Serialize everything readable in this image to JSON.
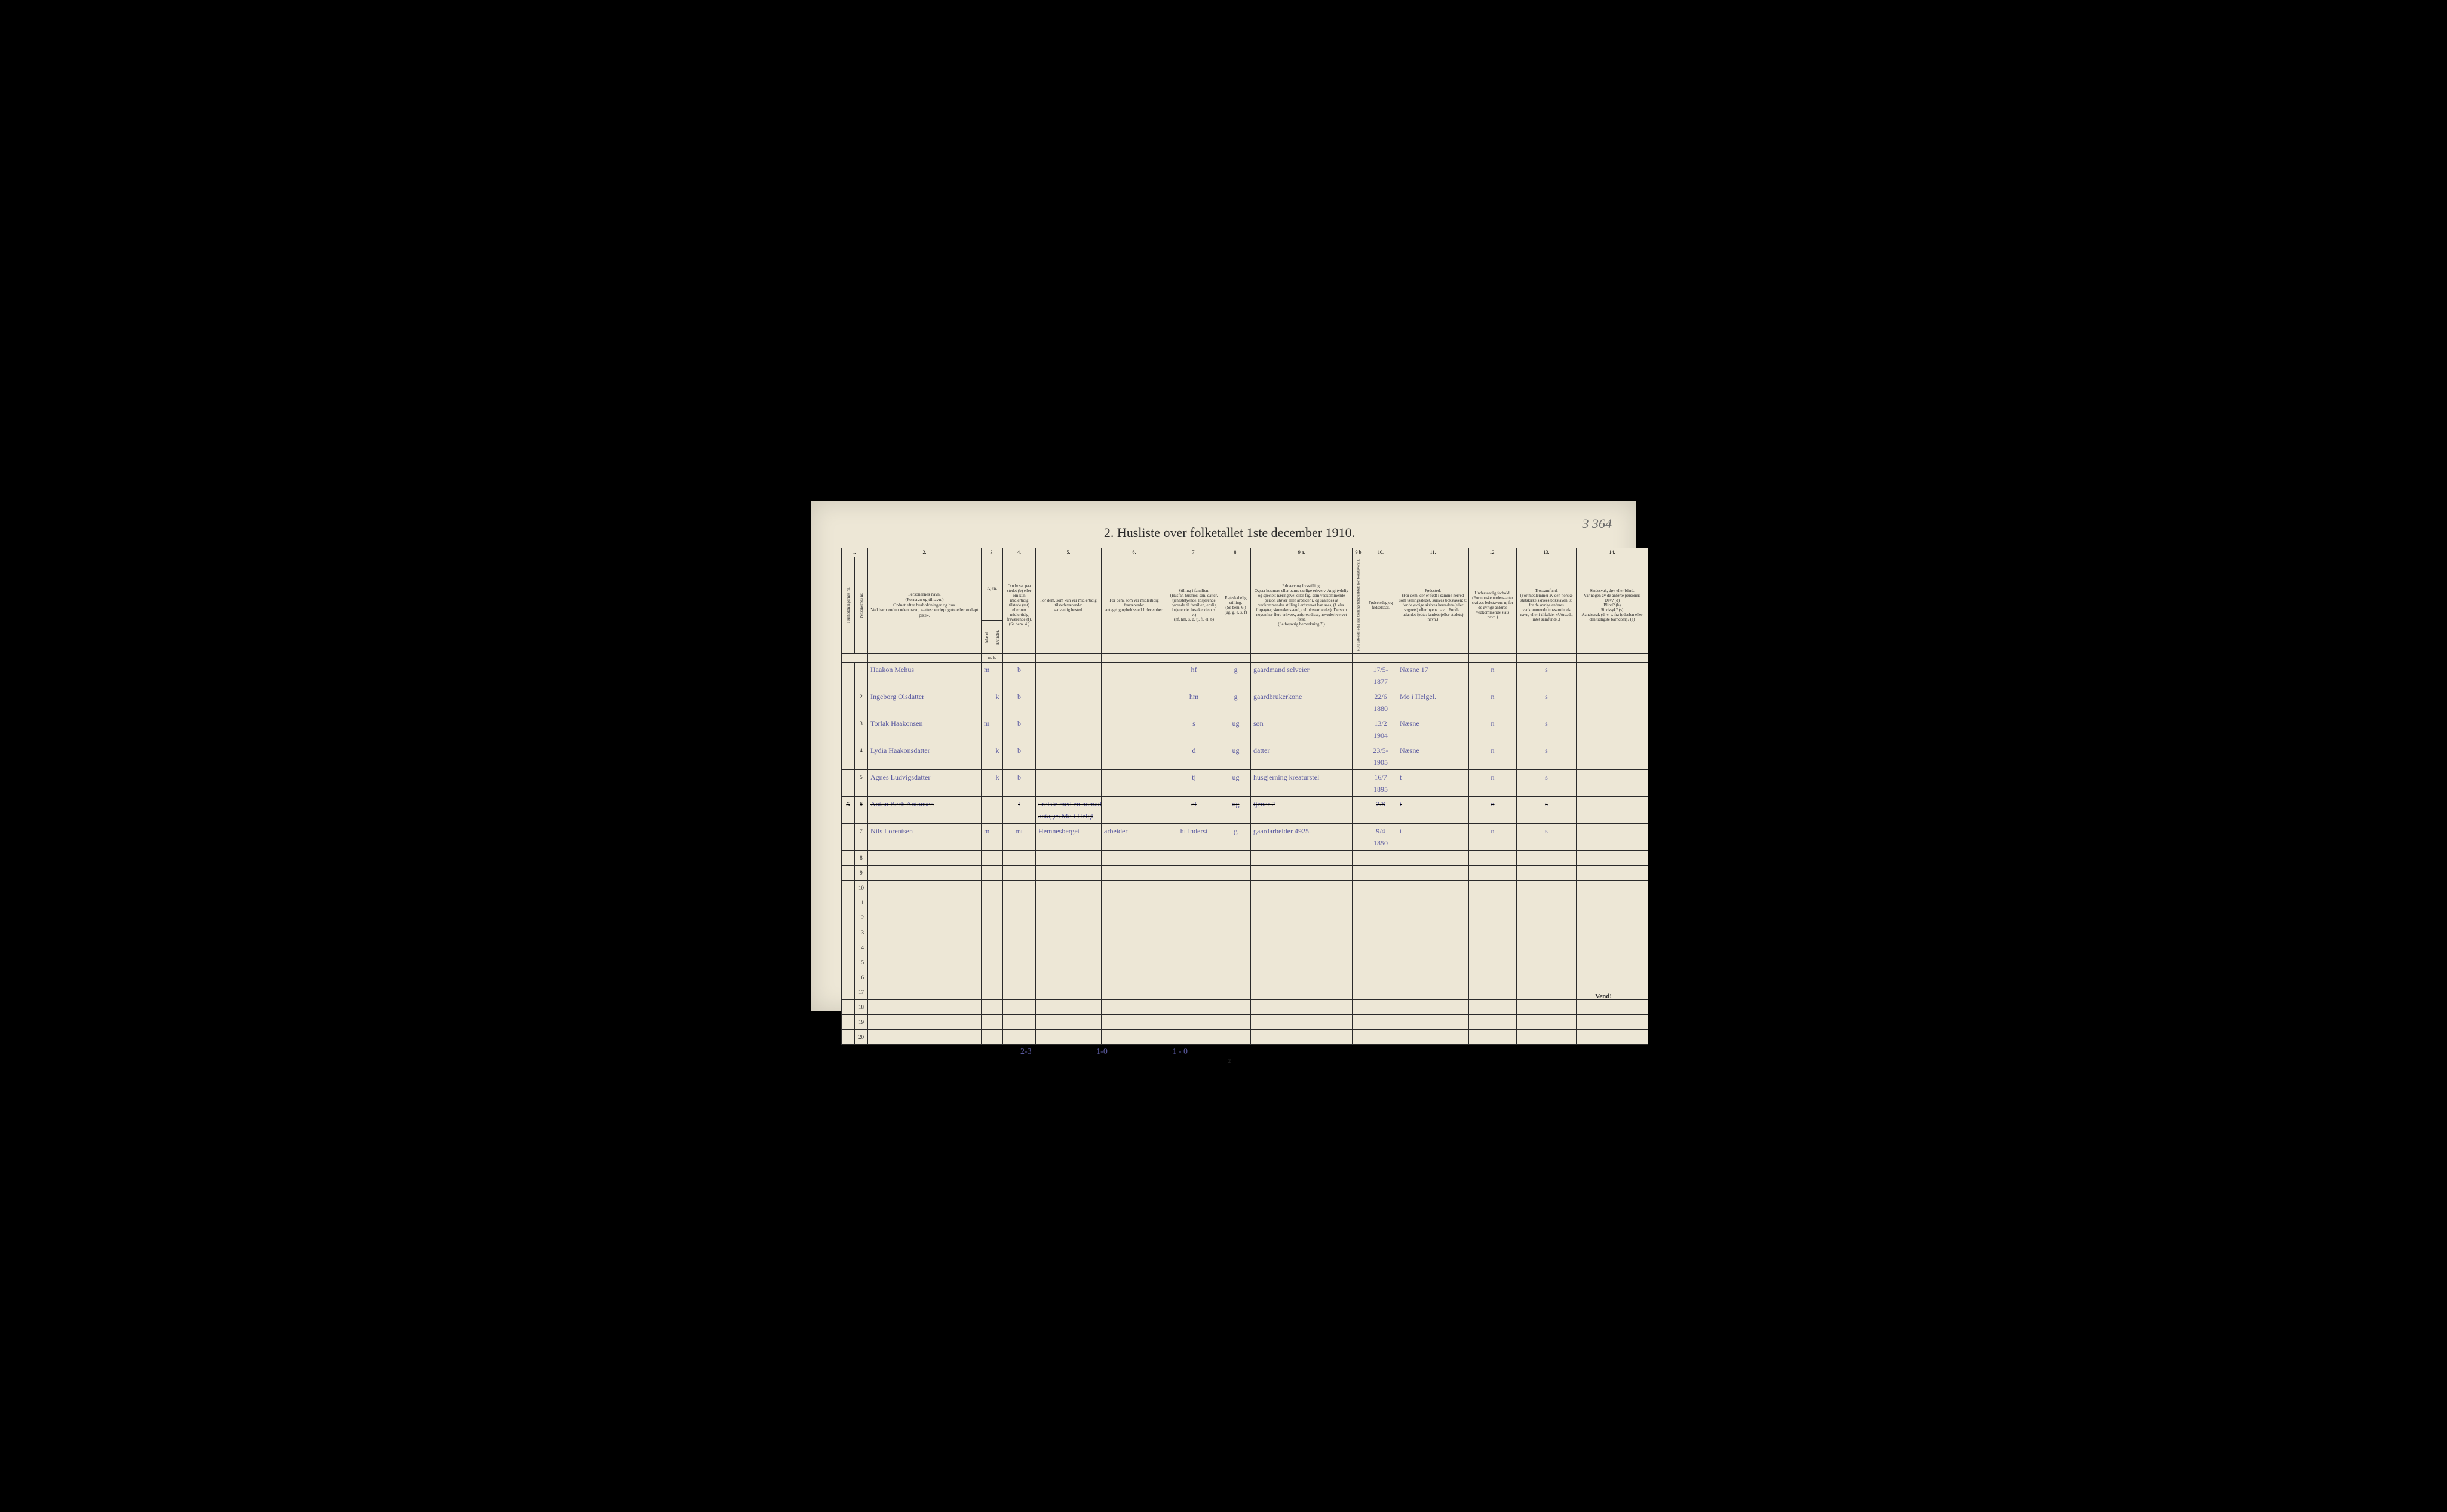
{
  "cornerNote": "3 364",
  "title": "2.  Husliste over folketallet 1ste december 1910.",
  "colNumbers": [
    "1.",
    "2.",
    "3.",
    "4.",
    "5.",
    "6.",
    "7.",
    "8.",
    "9 a.",
    "9 b",
    "10.",
    "11.",
    "12.",
    "13.",
    "14."
  ],
  "headers": {
    "c1a": "Husholdningernes nr.",
    "c1b": "Personernes nr.",
    "c2": "Personernes navn.\n(Fornavn og tilnavn.)\nOrdnet efter husholdninger og hus.\nVed barn endnu uden navn, sættes: «udøpt gut» eller «udøpt pike».",
    "c3": "Kjøn.",
    "c3m": "Mænd.",
    "c3k": "Kvinder.",
    "c4": "Om bosat paa stedet (b) eller om kun midlertidig tilstede (mt) eller om midlertidig fraværende (f).\n(Se bem. 4.)",
    "c5": "For dem, som kun var midlertidig tilstedeværende:\nsedvanlig bosted.",
    "c6": "For dem, som var midlertidig fraværende:\nantagelig opholdssted 1 december.",
    "c7": "Stilling i familien.\n(Husfar, husmor, søn, datter, tjenestetyende, losjerende hørende til familien, enslig losjerende, besøkende o. s. v.)\n(hf, hm, s, d, tj, fl, el, b)",
    "c8": "Egteskabelig stilling.\n(Se bem. 6.)\n(ug, g, e, s, f)",
    "c9a": "Erhverv og livsstilling.\nOgsaa husmors eller barns særlige erhverv. Angi tydelig og specielt næringsvei eller fag, som vedkommende person utøver eller arbeider i, og saaledes at vedkommendes stilling i erhvervet kan sees, (f. eks. forpagter, skomakersvend, cellulosearbeider). Dersom nogen har flere erhverv, anføres disse, hovederhvervet først.\n(Se forøvrig bemerkning 7.)",
    "c9b": "Hvis arbeidsledig paa tællingstidspunktet: her bokstaven: l.",
    "c10": "Fødselsdag og fødselsaar.",
    "c11": "Fødested.\n(For dem, der er født i samme herred som tællingsstedet, skrives bokstaven: t; for de øvrige skrives herredets (eller sognets) eller byens navn. For de i utlandet fødte: landets (eller stedets) navn.)",
    "c12": "Undersaatlig forhold.\n(For norske undersaatter skrives bokstaven: n; for de øvrige anføres vedkommende stats navn.)",
    "c13": "Trossamfund.\n(For medlemmer av den norske statskirke skrives bokstaven: s; for de øvrige anføres vedkommende trossamfunds navn, eller i tilfælde: «Uttraadt, intet samfund».)",
    "c14": "Sindssvak, døv eller blind.\nVar nogen av de anførte personer:\nDøv?  (d)\nBlind?  (b)\nSindssyk? (s)\nAandssvak (d. v. s. fra fødselen eller den tidligste barndom)? (a)",
    "mk": "m.  k."
  },
  "rows": [
    {
      "hn": "1",
      "pn": "1",
      "name": "Haakon Mehus",
      "sex": "m",
      "res": "b",
      "c5": "",
      "c6": "",
      "fam": "hf",
      "eg": "g",
      "erh": "gaardmand selveier",
      "dob": "17/5-\n1877",
      "birthplace": "Næsne     17",
      "c12": "n",
      "c13": "s",
      "c14": ""
    },
    {
      "hn": "",
      "pn": "2",
      "name": "Ingeborg Olsdatter",
      "sex": "k",
      "res": "b",
      "c5": "",
      "c6": "",
      "fam": "hm",
      "eg": "g",
      "erh": "gaardbrukerkone",
      "dob": "22/6\n1880",
      "birthplace": "Mo i Helgel.",
      "c12": "n",
      "c13": "s",
      "c14": ""
    },
    {
      "hn": "",
      "pn": "3",
      "name": "Torlak Haakonsen",
      "sex": "m",
      "res": "b",
      "c5": "",
      "c6": "",
      "fam": "s",
      "eg": "ug",
      "erh": "søn",
      "dob": "13/2\n1904",
      "birthplace": "Næsne",
      "c12": "n",
      "c13": "s",
      "c14": ""
    },
    {
      "hn": "",
      "pn": "4",
      "name": "Lydia Haakonsdatter",
      "sex": "k",
      "res": "b",
      "c5": "",
      "c6": "",
      "fam": "d",
      "eg": "ug",
      "erh": "datter",
      "dob": "23/5-\n1905",
      "birthplace": "Næsne",
      "c12": "n",
      "c13": "s",
      "c14": ""
    },
    {
      "hn": "",
      "pn": "5",
      "name": "Agnes Ludvigsdatter",
      "sex": "k",
      "res": "b",
      "c5": "",
      "c6": "",
      "fam": "tj",
      "eg": "ug",
      "erh": "husgjerning kreaturstel",
      "dob": "16/7\n1895",
      "birthplace": "t",
      "c12": "n",
      "c13": "s",
      "c14": ""
    },
    {
      "hn": "X",
      "pn": "6",
      "name": "Anton Bech Antonsen",
      "sex": "",
      "res": "f",
      "c5": "ureiste med en nomadestamme\nantages Mo i Helgl",
      "c6": "",
      "fam": "el",
      "eg": "ug",
      "erh": "tjener   2",
      "dob": "2/8\n",
      "birthplace": "t",
      "c12": "n",
      "c13": "s",
      "c14": "",
      "struck": true
    },
    {
      "hn": "",
      "pn": "7",
      "name": "Nils Lorentsen",
      "sex": "m",
      "res": "mt",
      "c5": "Hemnesberget",
      "c6": "arbeider",
      "fam": "hf inderst",
      "eg": "g",
      "erh": "gaardarbeider 4925.",
      "dob": "9/4\n1850",
      "birthplace": "t",
      "c12": "n",
      "c13": "s",
      "c14": ""
    }
  ],
  "emptyRows": [
    8,
    9,
    10,
    11,
    12,
    13,
    14,
    15,
    16,
    17,
    18,
    19,
    20
  ],
  "bottomNotes": {
    "a": "2-3",
    "b": "1-0",
    "c": "1 - 0"
  },
  "pageNumber": "2",
  "vend": "Vend!",
  "layout": {
    "widths": [
      22,
      22,
      190,
      18,
      18,
      55,
      110,
      110,
      90,
      50,
      170,
      20,
      55,
      120,
      80,
      100,
      120
    ]
  },
  "colors": {
    "paper": "#ede7d6",
    "ink": "#2a2a2a",
    "pen": "#5a5aa0"
  }
}
